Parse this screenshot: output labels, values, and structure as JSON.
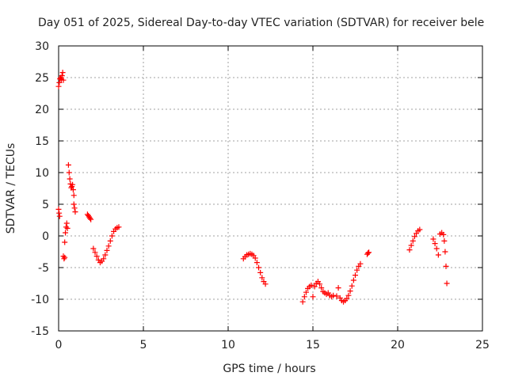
{
  "chart_data": {
    "type": "scatter",
    "title": "Day 051 of 2025, Sidereal Day-to-day VTEC variation (SDTVAR) for receiver bele",
    "xlabel": "GPS time / hours",
    "ylabel": "SDTVAR / TECUs",
    "xlim": [
      0,
      25
    ],
    "ylim": [
      -15,
      30
    ],
    "xticks": [
      0,
      5,
      10,
      15,
      20,
      25
    ],
    "yticks": [
      -15,
      -10,
      -5,
      0,
      5,
      10,
      15,
      20,
      25,
      30
    ],
    "grid": true,
    "marker": "+",
    "color": "#ff0000",
    "segments": [
      {
        "name": "seg-1",
        "x": [
          0.0,
          0.04,
          0.08,
          0.12,
          0.16,
          0.2,
          0.24,
          0.28
        ],
        "y": [
          23.6,
          24.2,
          24.8,
          25.0,
          24.7,
          25.3,
          25.8,
          24.6
        ]
      },
      {
        "name": "seg-2",
        "x": [
          0.0,
          0.03,
          0.06
        ],
        "y": [
          4.2,
          3.6,
          3.1
        ]
      },
      {
        "name": "seg-3",
        "x": [
          0.28,
          0.32,
          0.36
        ],
        "y": [
          -3.2,
          -3.6,
          -3.4
        ]
      },
      {
        "name": "seg-4",
        "x": [
          0.36,
          0.4,
          0.44,
          0.48,
          0.52
        ],
        "y": [
          -1.0,
          0.5,
          1.4,
          2.0,
          1.2
        ]
      },
      {
        "name": "seg-5",
        "x": [
          0.58,
          0.62,
          0.66,
          0.7,
          0.74,
          0.78,
          0.82,
          0.86,
          0.9
        ],
        "y": [
          11.2,
          10.0,
          9.0,
          8.2,
          7.6,
          7.8,
          8.1,
          7.3,
          6.4
        ]
      },
      {
        "name": "seg-6",
        "x": [
          0.9,
          0.94,
          0.98
        ],
        "y": [
          5.0,
          4.4,
          3.8
        ]
      },
      {
        "name": "seg-7",
        "x": [
          1.7,
          1.75,
          1.8,
          1.85,
          1.9
        ],
        "y": [
          3.4,
          3.2,
          3.0,
          2.8,
          2.6
        ]
      },
      {
        "name": "seg-8",
        "x": [
          2.05,
          2.15,
          2.25,
          2.35,
          2.45,
          2.55,
          2.65,
          2.75,
          2.85,
          2.95,
          3.05,
          3.15,
          3.25,
          3.35,
          3.45,
          3.55
        ],
        "y": [
          -2.0,
          -2.6,
          -3.2,
          -3.8,
          -4.2,
          -4.0,
          -3.6,
          -3.0,
          -2.3,
          -1.6,
          -0.8,
          0.0,
          0.7,
          1.1,
          1.3,
          1.4
        ]
      },
      {
        "name": "seg-9",
        "x": [
          10.9,
          11.0,
          11.1,
          11.2,
          11.3,
          11.4,
          11.5,
          11.6,
          11.7,
          11.8,
          11.9,
          12.0,
          12.1,
          12.2
        ],
        "y": [
          -3.6,
          -3.3,
          -3.0,
          -2.9,
          -2.8,
          -2.9,
          -3.1,
          -3.5,
          -4.2,
          -5.0,
          -5.8,
          -6.6,
          -7.2,
          -7.6
        ]
      },
      {
        "name": "seg-10",
        "x": [
          14.4,
          14.5,
          14.6,
          14.7,
          14.8,
          14.9,
          15.0
        ],
        "y": [
          -10.4,
          -9.6,
          -8.9,
          -8.3,
          -8.0,
          -7.8,
          -9.6
        ]
      },
      {
        "name": "seg-11",
        "x": [
          15.1,
          15.2,
          15.3,
          15.4,
          15.5,
          15.6,
          15.7,
          15.8,
          15.9,
          16.0,
          16.1,
          16.2
        ],
        "y": [
          -8.0,
          -7.5,
          -7.2,
          -7.6,
          -8.2,
          -8.8,
          -9.0,
          -9.2,
          -9.0,
          -9.4,
          -9.6,
          -9.4
        ]
      },
      {
        "name": "seg-12",
        "x": [
          16.4,
          16.5,
          16.6,
          16.7,
          16.8,
          16.9,
          17.0,
          17.1,
          17.2,
          17.3,
          17.4,
          17.5,
          17.6,
          17.7,
          17.8
        ],
        "y": [
          -9.5,
          -8.2,
          -9.8,
          -10.2,
          -10.4,
          -10.2,
          -9.9,
          -9.4,
          -8.7,
          -7.9,
          -7.0,
          -6.2,
          -5.4,
          -4.8,
          -4.4
        ]
      },
      {
        "name": "seg-13",
        "x": [
          18.2,
          18.25,
          18.3
        ],
        "y": [
          -2.9,
          -2.7,
          -2.6
        ]
      },
      {
        "name": "seg-14",
        "x": [
          20.7,
          20.8,
          20.9,
          21.0,
          21.1,
          21.2,
          21.3
        ],
        "y": [
          -2.2,
          -1.5,
          -0.8,
          -0.1,
          0.4,
          0.8,
          1.0
        ]
      },
      {
        "name": "seg-15",
        "x": [
          22.1,
          22.2,
          22.3,
          22.4,
          22.5,
          22.6,
          22.7,
          22.75,
          22.8,
          22.85,
          22.9
        ],
        "y": [
          -0.5,
          -1.2,
          -2.0,
          -3.0,
          0.3,
          0.5,
          0.2,
          -0.8,
          -2.5,
          -4.8,
          -7.5
        ]
      }
    ]
  }
}
